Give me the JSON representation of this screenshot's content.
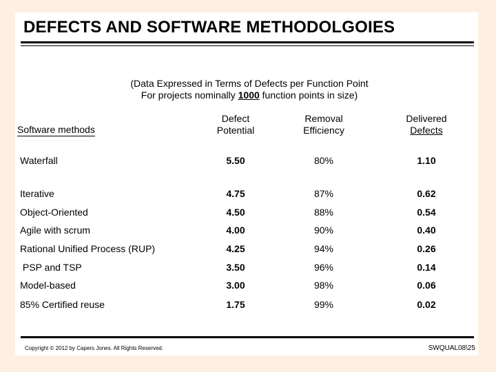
{
  "slide": {
    "title": "DEFECTS AND SOFTWARE METHODOLGOIES",
    "subtitle_line1": "(Data Expressed in Terms of Defects per Function Point",
    "subtitle_line2_prefix": "For projects nominally ",
    "subtitle_line2_number": "1000",
    "subtitle_line2_suffix": " function points in size)",
    "headers": {
      "methods": "Software methods",
      "potential_line1": "Defect",
      "potential_line2": "Potential",
      "efficiency_line1": "Removal",
      "efficiency_line2": "Efficiency",
      "delivered_line1": "Delivered",
      "delivered_line2": "Defects"
    },
    "rows": [
      {
        "method": "Waterfall",
        "potential": "5.50",
        "efficiency": "80%",
        "delivered": "1.10"
      },
      {
        "method": "Iterative",
        "potential": "4.75",
        "efficiency": "87%",
        "delivered": "0.62"
      },
      {
        "method": "Object-Oriented",
        "potential": "4.50",
        "efficiency": "88%",
        "delivered": "0.54"
      },
      {
        "method": "Agile with scrum",
        "potential": "4.00",
        "efficiency": "90%",
        "delivered": "0.40"
      },
      {
        "method": "Rational Unified Process (RUP)",
        "potential": "4.25",
        "efficiency": "94%",
        "delivered": "0.26"
      },
      {
        "method": " PSP and TSP",
        "potential": "3.50",
        "efficiency": "96%",
        "delivered": "0.14"
      },
      {
        "method": "Model-based",
        "potential": "3.00",
        "efficiency": "98%",
        "delivered": "0.06"
      },
      {
        "method": "85% Certified reuse",
        "potential": "1.75",
        "efficiency": "99%",
        "delivered": "0.02"
      }
    ],
    "copyright": "Copyright © 2012 by Capers Jones.  All Rights Reserved.",
    "slide_id": "SWQUAL08\\25"
  }
}
